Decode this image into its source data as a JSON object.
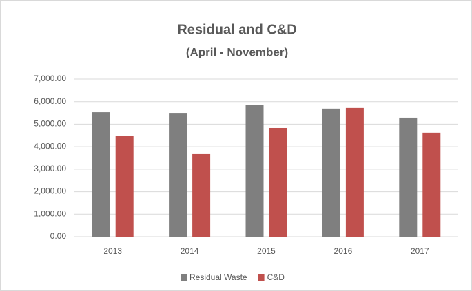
{
  "chart_data": {
    "type": "bar",
    "title": "Residual and C&D",
    "subtitle": "(April - November)",
    "categories": [
      "2013",
      "2014",
      "2015",
      "2016",
      "2017"
    ],
    "series": [
      {
        "name": "Residual Waste",
        "color": "#7f7f7f",
        "values": [
          5530,
          5500,
          5840,
          5690,
          5290
        ]
      },
      {
        "name": "C&D",
        "color": "#c0504d",
        "values": [
          4470,
          3670,
          4830,
          5720,
          4620
        ]
      }
    ],
    "ylim": [
      0,
      7000
    ],
    "yticks": [
      {
        "value": 0,
        "label": "0.00"
      },
      {
        "value": 1000,
        "label": "1,000.00"
      },
      {
        "value": 2000,
        "label": "2,000.00"
      },
      {
        "value": 3000,
        "label": "3,000.00"
      },
      {
        "value": 4000,
        "label": "4,000.00"
      },
      {
        "value": 5000,
        "label": "5,000.00"
      },
      {
        "value": 6000,
        "label": "6,000.00"
      },
      {
        "value": 7000,
        "label": "7,000.00"
      }
    ],
    "grid": true,
    "legend": "bottom"
  }
}
